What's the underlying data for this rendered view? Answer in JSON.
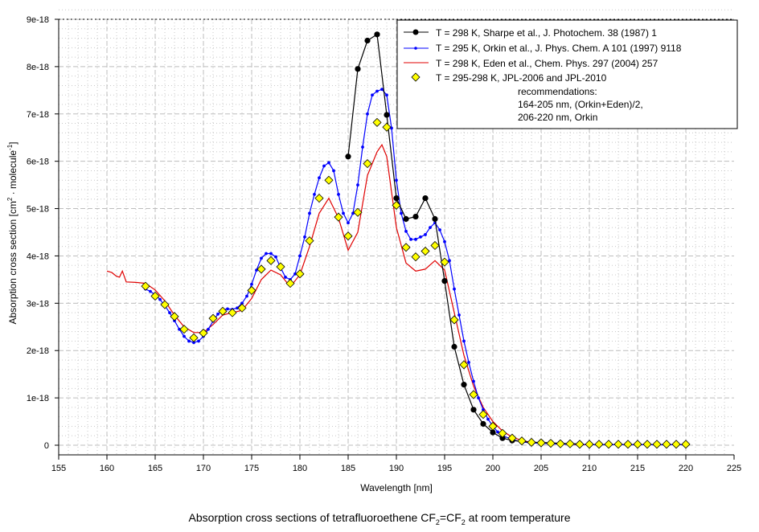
{
  "chart_data": {
    "type": "line",
    "title_parts": [
      "Absorption cross sections of tetrafluoroethene CF",
      "2",
      "=CF",
      "2",
      " at room temperature"
    ],
    "xlabel": "Wavelength [nm]",
    "ylabel_parts": [
      "Absorption cross section [cm",
      "2",
      " · molecule",
      "-1",
      "]"
    ],
    "xlim": [
      155,
      225
    ],
    "ylim": [
      0,
      9e-18
    ],
    "xticks": [
      155,
      160,
      165,
      170,
      175,
      180,
      185,
      190,
      195,
      200,
      205,
      210,
      215,
      220,
      225
    ],
    "xtick_labels": [
      "155",
      "160",
      "165",
      "170",
      "175",
      "180",
      "185",
      "190",
      "195",
      "200",
      "205",
      "210",
      "215",
      "220",
      "225"
    ],
    "yticks": [
      0,
      1e-18,
      2e-18,
      3e-18,
      4e-18,
      5e-18,
      6e-18,
      7e-18,
      8e-18,
      9e-18
    ],
    "ytick_labels": [
      "0",
      "1e-18",
      "2e-18",
      "3e-18",
      "4e-18",
      "5e-18",
      "6e-18",
      "7e-18",
      "8e-18",
      "9e-18"
    ],
    "grid": true,
    "legend_position": "top-right",
    "series": [
      {
        "name": "T = 298 K, Sharpe et al., J. Photochem. 38 (1987) 1",
        "color": "#000000",
        "marker": "circle",
        "x": [
          185,
          186,
          187,
          188,
          189,
          190,
          191,
          192,
          193,
          194,
          195,
          196,
          197,
          198,
          199,
          200,
          201,
          202,
          203,
          204,
          205,
          206,
          207,
          208,
          209
        ],
        "y": [
          6.1e-18,
          7.95e-18,
          8.55e-18,
          8.68e-18,
          6.98e-18,
          5.22e-18,
          4.78e-18,
          4.83e-18,
          5.22e-18,
          4.78e-18,
          3.47e-18,
          2.08e-18,
          1.28e-18,
          7.5e-19,
          4.5e-19,
          2.7e-19,
          1.5e-19,
          1e-19,
          8e-20,
          6e-20,
          6e-20,
          5e-20,
          4e-20,
          3e-20,
          3e-20
        ]
      },
      {
        "name": "T = 295 K, Orkin et al., J. Phys. Chem. A 101 (1997) 9118",
        "color": "#0000ff",
        "marker": "dot",
        "x": [
          164,
          164.5,
          165,
          165.5,
          166,
          166.5,
          167,
          167.5,
          168,
          168.5,
          169,
          169.5,
          170,
          170.5,
          171,
          171.5,
          172,
          172.5,
          173,
          173.5,
          174,
          174.5,
          175,
          175.5,
          176,
          176.5,
          177,
          177.5,
          178,
          178.5,
          179,
          179.5,
          180,
          180.5,
          181,
          181.5,
          182,
          182.5,
          183,
          183.5,
          184,
          184.5,
          185,
          185.5,
          186,
          186.5,
          187,
          187.5,
          188,
          188.5,
          189,
          189.5,
          190,
          190.5,
          191,
          191.5,
          192,
          192.5,
          193,
          193.5,
          194,
          194.5,
          195,
          195.5,
          196,
          196.5,
          197,
          197.5,
          198,
          198.5,
          199,
          199.5,
          200,
          200.5,
          201,
          202,
          203,
          204,
          205,
          206,
          207,
          208,
          209,
          210,
          211,
          212,
          213,
          214,
          215,
          216,
          217,
          218,
          219,
          220
        ],
        "y": [
          3.3e-18,
          3.25e-18,
          3.18e-18,
          3.08e-18,
          2.95e-18,
          2.8e-18,
          2.63e-18,
          2.45e-18,
          2.3e-18,
          2.2e-18,
          2.17e-18,
          2.2e-18,
          2.3e-18,
          2.45e-18,
          2.62e-18,
          2.77e-18,
          2.86e-18,
          2.88e-18,
          2.87e-18,
          2.9e-18,
          3e-18,
          3.15e-18,
          3.4e-18,
          3.7e-18,
          3.95e-18,
          4.05e-18,
          4.05e-18,
          3.98e-18,
          3.75e-18,
          3.55e-18,
          3.5e-18,
          3.62e-18,
          4e-18,
          4.4e-18,
          4.9e-18,
          5.3e-18,
          5.65e-18,
          5.9e-18,
          5.97e-18,
          5.8e-18,
          5.3e-18,
          4.9e-18,
          4.7e-18,
          4.9e-18,
          5.5e-18,
          6.3e-18,
          7e-18,
          7.4e-18,
          7.48e-18,
          7.52e-18,
          7.4e-18,
          6.7e-18,
          5.6e-18,
          4.9e-18,
          4.52e-18,
          4.35e-18,
          4.35e-18,
          4.4e-18,
          4.45e-18,
          4.6e-18,
          4.7e-18,
          4.55e-18,
          4.3e-18,
          3.9e-18,
          3.3e-18,
          2.75e-18,
          2.2e-18,
          1.75e-18,
          1.35e-18,
          1e-18,
          7.5e-19,
          5.5e-19,
          4e-19,
          2.8e-19,
          2e-19,
          1.2e-19,
          7e-20,
          5e-20,
          4e-20,
          3e-20,
          2e-20,
          2e-20,
          2e-20,
          1e-20,
          1e-20,
          1e-20,
          1e-20,
          1e-20,
          1e-20,
          1e-20,
          1e-20,
          1e-20,
          1e-20,
          1e-20
        ]
      },
      {
        "name": "T = 298 K, Eden et al., Chem. Phys. 297 (2004) 257",
        "color": "#e00000",
        "marker": "none",
        "x": [
          160,
          160.5,
          161,
          161.3,
          161.6,
          162,
          163,
          163.5,
          164,
          165,
          166,
          167,
          168,
          169,
          170,
          171,
          172,
          173,
          174,
          175,
          176,
          177,
          178,
          179,
          180,
          181,
          182,
          183,
          184,
          185,
          186,
          187,
          188,
          188.5,
          189,
          190,
          191,
          192,
          193,
          194,
          195,
          196,
          197,
          198,
          199,
          200,
          201,
          202,
          203,
          204,
          205,
          206,
          207,
          208,
          209,
          210,
          212,
          214,
          216,
          218,
          220
        ],
        "y": [
          3.68e-18,
          3.65e-18,
          3.57e-18,
          3.55e-18,
          3.68e-18,
          3.45e-18,
          3.44e-18,
          3.43e-18,
          3.42e-18,
          3.28e-18,
          3.05e-18,
          2.75e-18,
          2.5e-18,
          2.38e-18,
          2.38e-18,
          2.55e-18,
          2.75e-18,
          2.8e-18,
          2.85e-18,
          3.1e-18,
          3.5e-18,
          3.7e-18,
          3.6e-18,
          3.35e-18,
          3.6e-18,
          4.2e-18,
          4.9e-18,
          5.22e-18,
          4.8e-18,
          4.12e-18,
          4.5e-18,
          5.7e-18,
          6.2e-18,
          6.35e-18,
          6.1e-18,
          4.6e-18,
          3.85e-18,
          3.68e-18,
          3.72e-18,
          3.9e-18,
          3.7e-18,
          2.8e-18,
          1.9e-18,
          1.25e-18,
          8e-19,
          5e-19,
          3e-19,
          1.7e-19,
          1e-19,
          6e-20,
          4e-20,
          3e-20,
          2e-20,
          2e-20,
          1e-20,
          1e-20,
          1e-20,
          1e-20,
          1e-20,
          1e-20,
          1e-20
        ]
      },
      {
        "name": "T = 295-298 K, JPL-2006 and JPL-2010",
        "name_lines": [
          "recommendations:",
          "164-205 nm, (Orkin+Eden)/2,",
          "206-220 nm, Orkin"
        ],
        "color": "#ffff00",
        "marker": "diamond",
        "x": [
          164,
          165,
          166,
          167,
          168,
          169,
          170,
          171,
          172,
          173,
          174,
          175,
          176,
          177,
          178,
          179,
          180,
          181,
          182,
          183,
          184,
          185,
          186,
          187,
          188,
          189,
          190,
          191,
          192,
          193,
          194,
          195,
          196,
          197,
          198,
          199,
          200,
          201,
          202,
          203,
          204,
          205,
          206,
          207,
          208,
          209,
          210,
          211,
          212,
          213,
          214,
          215,
          216,
          217,
          218,
          219,
          220
        ],
        "y": [
          3.36e-18,
          3.15e-18,
          2.97e-18,
          2.72e-18,
          2.45e-18,
          2.27e-18,
          2.37e-18,
          2.68e-18,
          2.83e-18,
          2.8e-18,
          2.9e-18,
          3.27e-18,
          3.72e-18,
          3.9e-18,
          3.77e-18,
          3.42e-18,
          3.62e-18,
          4.32e-18,
          5.22e-18,
          5.6e-18,
          4.82e-18,
          4.42e-18,
          4.92e-18,
          5.95e-18,
          6.82e-18,
          6.72e-18,
          5.07e-18,
          4.18e-18,
          3.98e-18,
          4.1e-18,
          4.22e-18,
          3.87e-18,
          2.65e-18,
          1.7e-18,
          1.07e-18,
          6.5e-19,
          4e-19,
          2.5e-19,
          1.5e-19,
          9e-20,
          6e-20,
          5e-20,
          4e-20,
          3e-20,
          3e-20,
          2e-20,
          2e-20,
          2e-20,
          2e-20,
          2e-20,
          2e-20,
          2e-20,
          2e-20,
          2e-20,
          2e-20,
          2e-20,
          2e-20
        ]
      }
    ]
  }
}
